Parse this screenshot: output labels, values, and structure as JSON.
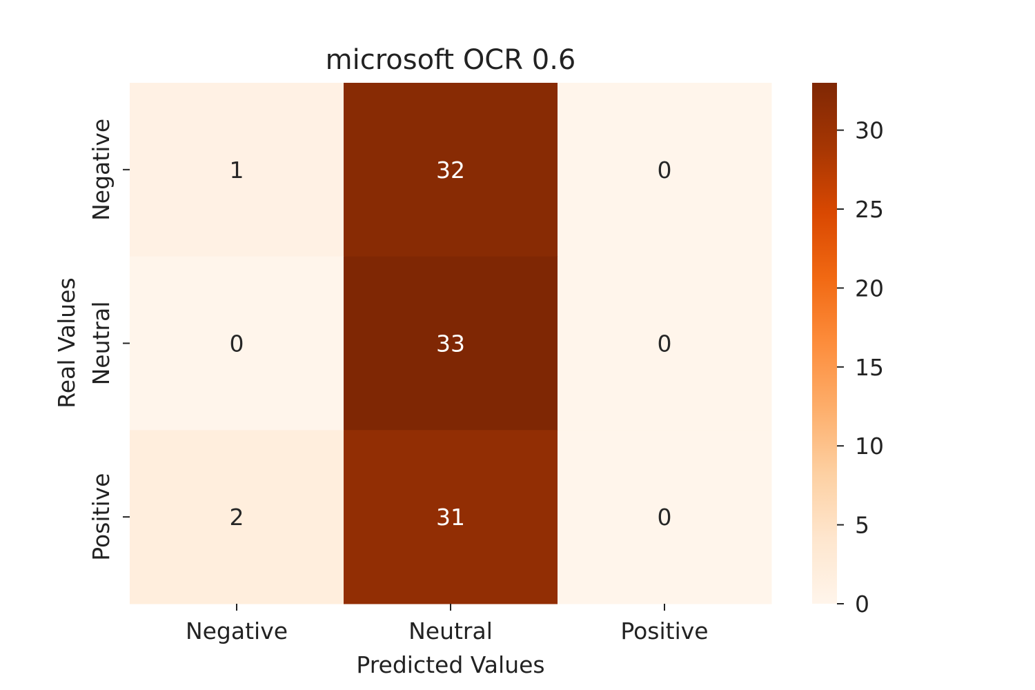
{
  "chart_data": {
    "type": "heatmap",
    "title": "microsoft OCR 0.6",
    "xlabel": "Predicted Values",
    "ylabel": "Real Values",
    "x_categories": [
      "Negative",
      "Neutral",
      "Positive"
    ],
    "y_categories": [
      "Negative",
      "Neutral",
      "Positive"
    ],
    "values": [
      [
        1,
        32,
        0
      ],
      [
        0,
        33,
        0
      ],
      [
        2,
        31,
        0
      ]
    ],
    "colormap": "Oranges",
    "colorbar": {
      "range": [
        0,
        33
      ],
      "ticks": [
        0,
        5,
        10,
        15,
        20,
        25,
        30
      ]
    },
    "grid": false,
    "annotations": true
  }
}
